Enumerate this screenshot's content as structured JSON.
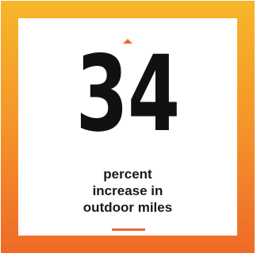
{
  "stat": {
    "number": "34",
    "label_lines": [
      "percent",
      "increase in",
      "outdoor miles"
    ]
  },
  "colors": {
    "accent": "#ee6a2a",
    "frame_top": "#f6b62a",
    "frame_bottom": "#ef6a28",
    "text": "#111111"
  },
  "icons": {
    "caret": "caret-up-icon"
  }
}
